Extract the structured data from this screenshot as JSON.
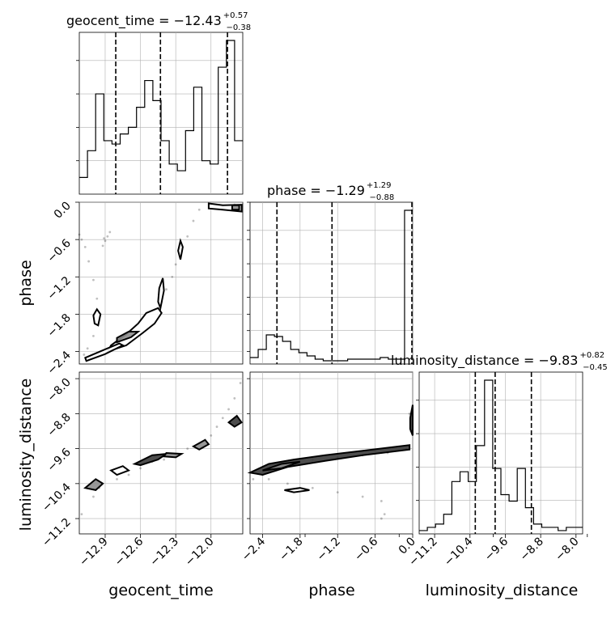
{
  "chart_data": {
    "type": "corner",
    "parameters": [
      "geocent_time",
      "phase",
      "luminosity_distance"
    ],
    "axis_labels": [
      "geocent_time",
      "phase",
      "luminosity_distance"
    ],
    "ranges": {
      "geocent_time": [
        -13.12,
        -11.73
      ],
      "phase": [
        -2.6,
        0.0
      ],
      "luminosity_distance": [
        -11.55,
        -7.85
      ]
    },
    "ticks": {
      "geocent_time": [
        "-12.9",
        "-12.6",
        "-12.3",
        "-12.0"
      ],
      "phase": [
        "-2.4",
        "-1.8",
        "-1.2",
        "-0.6",
        "0.0"
      ],
      "luminosity_distance": [
        "-11.2",
        "-10.4",
        "-9.6",
        "-8.8",
        "-8.0"
      ]
    },
    "titles": {
      "geocent_time": "geocent_time = −12.43",
      "phase": "phase = −1.29",
      "luminosity_distance": "luminosity_distance = −9.83"
    },
    "title_errors": {
      "geocent_time": {
        "plus": "+0.57",
        "minus": "−0.38"
      },
      "phase": {
        "plus": "+1.29",
        "minus": "−0.88"
      },
      "luminosity_distance": {
        "plus": "+0.82",
        "minus": "−0.45"
      }
    },
    "quantiles": {
      "geocent_time": [
        -12.81,
        -12.43,
        -11.86
      ],
      "phase": [
        -2.17,
        -1.29,
        0.0
      ],
      "luminosity_distance": [
        -10.28,
        -9.83,
        -9.01
      ]
    },
    "histograms": {
      "geocent_time": {
        "start": -13.12,
        "width": 0.0695,
        "counts": [
          5,
          13,
          30,
          16,
          15,
          18,
          20,
          26,
          34,
          28,
          16,
          9,
          7,
          19,
          32,
          10,
          9,
          38,
          46,
          16
        ]
      },
      "phase": {
        "start": -2.6,
        "width": 0.13,
        "counts": [
          4,
          9,
          18,
          17,
          14,
          9,
          7,
          5,
          3,
          2,
          2,
          2,
          3,
          3,
          3,
          3,
          4,
          3,
          3,
          95
        ]
      },
      "luminosity_distance": {
        "start": -11.55,
        "width": 0.185,
        "counts": [
          1,
          2,
          3,
          6,
          16,
          19,
          16,
          27,
          47,
          20,
          12,
          10,
          20,
          8,
          3,
          2,
          2,
          1,
          2,
          2
        ]
      }
    },
    "scatter_samples": {
      "geocent_time_vs_phase": [
        [
          -13.08,
          -2.45
        ],
        [
          -13.05,
          -2.35
        ],
        [
          -13.0,
          -2.15
        ],
        [
          -12.98,
          -1.95
        ],
        [
          -12.96,
          -1.8
        ],
        [
          -12.97,
          -1.55
        ],
        [
          -13.0,
          -1.25
        ],
        [
          -13.04,
          -0.95
        ],
        [
          -13.07,
          -0.72
        ],
        [
          -13.1,
          -0.6
        ],
        [
          -13.12,
          -0.52
        ],
        [
          -12.9,
          -0.62
        ],
        [
          -12.88,
          -0.55
        ],
        [
          -12.92,
          -0.7
        ],
        [
          -12.86,
          -0.48
        ],
        [
          -12.91,
          -0.58
        ],
        [
          -12.7,
          -2.25
        ],
        [
          -12.6,
          -2.1
        ],
        [
          -12.5,
          -1.95
        ],
        [
          -12.45,
          -1.8
        ],
        [
          -12.42,
          -1.6
        ],
        [
          -12.38,
          -1.4
        ],
        [
          -12.33,
          -1.2
        ],
        [
          -12.3,
          -1.0
        ],
        [
          -12.25,
          -0.8
        ],
        [
          -12.2,
          -0.55
        ],
        [
          -12.15,
          -0.3
        ],
        [
          -12.1,
          -0.12
        ],
        [
          -12.0,
          -0.05
        ],
        [
          -11.9,
          -0.08
        ],
        [
          -11.8,
          -0.04
        ]
      ],
      "geocent_time_vs_luminosity_distance": [
        [
          -13.1,
          -11.1
        ],
        [
          -13.0,
          -10.7
        ],
        [
          -12.95,
          -10.5
        ],
        [
          -12.8,
          -10.3
        ],
        [
          -12.7,
          -10.2
        ],
        [
          -12.6,
          -10.05
        ],
        [
          -12.5,
          -9.9
        ],
        [
          -12.4,
          -9.85
        ],
        [
          -12.3,
          -9.75
        ],
        [
          -12.2,
          -9.6
        ],
        [
          -12.1,
          -9.5
        ],
        [
          -12.0,
          -9.3
        ],
        [
          -11.95,
          -9.1
        ],
        [
          -11.9,
          -8.9
        ],
        [
          -11.85,
          -8.7
        ],
        [
          -11.8,
          -8.45
        ],
        [
          -11.75,
          -8.1
        ]
      ],
      "phase_vs_luminosity_distance": [
        [
          -2.55,
          -10.3
        ],
        [
          -2.4,
          -10.2
        ],
        [
          -2.2,
          -10.1
        ],
        [
          -2.0,
          -9.95
        ],
        [
          -1.6,
          -9.85
        ],
        [
          -1.2,
          -9.8
        ],
        [
          -0.8,
          -9.75
        ],
        [
          -0.4,
          -9.7
        ],
        [
          -0.1,
          -9.6
        ],
        [
          -2.3,
          -10.3
        ],
        [
          -2.0,
          -10.4
        ],
        [
          -1.6,
          -10.5
        ],
        [
          -1.2,
          -10.6
        ],
        [
          -0.8,
          -10.7
        ],
        [
          -0.5,
          -10.8
        ],
        [
          -0.45,
          -11.1
        ],
        [
          -0.5,
          -11.2
        ],
        [
          -0.05,
          -8.8
        ],
        [
          -0.03,
          -9.2
        ]
      ]
    },
    "contours": {
      "geocent_time_vs_phase": [
        {
          "level": 1,
          "points": [
            [
              -12.88,
              -2.4
            ],
            [
              -12.72,
              -2.3
            ],
            [
              -12.58,
              -2.1
            ],
            [
              -12.48,
              -1.95
            ],
            [
              -12.42,
              -1.78
            ],
            [
              -12.45,
              -1.7
            ],
            [
              -12.55,
              -1.78
            ],
            [
              -12.62,
              -1.95
            ],
            [
              -12.72,
              -2.12
            ],
            [
              -12.85,
              -2.3
            ]
          ]
        },
        {
          "level": 2,
          "points": [
            [
              -12.8,
              -2.25
            ],
            [
              -12.68,
              -2.17
            ],
            [
              -12.62,
              -2.08
            ],
            [
              -12.7,
              -2.08
            ],
            [
              -12.8,
              -2.18
            ]
          ]
        },
        {
          "level": 1,
          "points": [
            [
              -12.43,
              -1.7
            ],
            [
              -12.4,
              -1.42
            ],
            [
              -12.41,
              -1.22
            ],
            [
              -12.44,
              -1.38
            ],
            [
              -12.45,
              -1.6
            ]
          ]
        },
        {
          "level": 1,
          "points": [
            [
              -12.26,
              -0.92
            ],
            [
              -12.24,
              -0.72
            ],
            [
              -12.26,
              -0.62
            ],
            [
              -12.28,
              -0.78
            ]
          ]
        },
        {
          "level": 1,
          "points": [
            [
              -12.02,
              -0.02
            ],
            [
              -11.9,
              -0.05
            ],
            [
              -11.74,
              -0.04
            ],
            [
              -11.74,
              -0.15
            ],
            [
              -11.9,
              -0.12
            ],
            [
              -12.02,
              -0.1
            ]
          ]
        },
        {
          "level": 2,
          "points": [
            [
              -11.82,
              -0.05
            ],
            [
              -11.76,
              -0.05
            ],
            [
              -11.76,
              -0.12
            ],
            [
              -11.82,
              -0.12
            ]
          ]
        },
        {
          "level": 1,
          "points": [
            [
              -12.96,
              -1.98
            ],
            [
              -12.94,
              -1.8
            ],
            [
              -12.97,
              -1.72
            ],
            [
              -13.0,
              -1.82
            ],
            [
              -12.99,
              -1.95
            ]
          ]
        },
        {
          "level": 1,
          "points": [
            [
              -13.07,
              -2.5
            ],
            [
              -12.92,
              -2.38
            ],
            [
              -12.78,
              -2.27
            ],
            [
              -12.75,
              -2.3
            ],
            [
              -12.9,
              -2.44
            ],
            [
              -13.06,
              -2.55
            ]
          ]
        }
      ],
      "geocent_time_vs_luminosity_distance": [
        {
          "level": 2,
          "points": [
            [
              -13.07,
              -10.5
            ],
            [
              -12.98,
              -10.3
            ],
            [
              -12.92,
              -10.4
            ],
            [
              -12.98,
              -10.55
            ]
          ]
        },
        {
          "level": 1,
          "points": [
            [
              -12.85,
              -10.1
            ],
            [
              -12.75,
              -10.0
            ],
            [
              -12.7,
              -10.1
            ],
            [
              -12.8,
              -10.2
            ]
          ]
        },
        {
          "level": 3,
          "points": [
            [
              -12.65,
              -9.95
            ],
            [
              -12.5,
              -9.75
            ],
            [
              -12.38,
              -9.72
            ],
            [
              -12.45,
              -9.85
            ],
            [
              -12.6,
              -9.98
            ]
          ]
        },
        {
          "level": 2,
          "points": [
            [
              -12.38,
              -9.7
            ],
            [
              -12.25,
              -9.72
            ],
            [
              -12.3,
              -9.8
            ],
            [
              -12.4,
              -9.78
            ]
          ]
        },
        {
          "level": 2,
          "points": [
            [
              -12.15,
              -9.55
            ],
            [
              -12.05,
              -9.4
            ],
            [
              -12.02,
              -9.5
            ],
            [
              -12.1,
              -9.62
            ]
          ]
        },
        {
          "level": 3,
          "points": [
            [
              -11.85,
              -9.0
            ],
            [
              -11.78,
              -8.85
            ],
            [
              -11.74,
              -9.0
            ],
            [
              -11.8,
              -9.1
            ]
          ]
        }
      ],
      "phase_vs_luminosity_distance": [
        {
          "level": 3,
          "points": [
            [
              -2.6,
              -10.15
            ],
            [
              -2.3,
              -9.95
            ],
            [
              -1.9,
              -9.85
            ],
            [
              -1.4,
              -9.75
            ],
            [
              -0.8,
              -9.65
            ],
            [
              -0.05,
              -9.52
            ],
            [
              -0.05,
              -9.62
            ],
            [
              -0.8,
              -9.75
            ],
            [
              -1.4,
              -9.88
            ],
            [
              -2.0,
              -10.02
            ],
            [
              -2.4,
              -10.2
            ]
          ]
        },
        {
          "level": 2,
          "points": [
            [
              -2.4,
              -10.1
            ],
            [
              -2.1,
              -9.95
            ],
            [
              -1.8,
              -9.9
            ],
            [
              -2.1,
              -10.05
            ]
          ]
        },
        {
          "level": 1,
          "points": [
            [
              -2.05,
              -10.55
            ],
            [
              -1.8,
              -10.5
            ],
            [
              -1.65,
              -10.55
            ],
            [
              -1.9,
              -10.6
            ]
          ]
        },
        {
          "level": 3,
          "points": [
            [
              -0.04,
              -8.9
            ],
            [
              0.0,
              -8.6
            ],
            [
              0.0,
              -9.3
            ],
            [
              -0.04,
              -9.15
            ]
          ]
        }
      ]
    }
  }
}
